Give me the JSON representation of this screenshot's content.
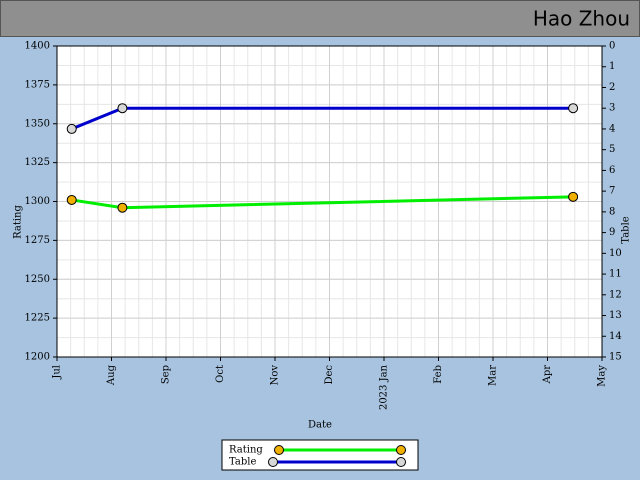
{
  "chart_data": {
    "type": "line",
    "title": "Hao Zhou",
    "xlabel": "Date",
    "ylabel": "Rating",
    "y2label": "Table",
    "x": [
      0.27,
      1.2,
      9.47
    ],
    "xlim": [
      0,
      10
    ],
    "xticks": [
      {
        "value": 0,
        "label": "Jul"
      },
      {
        "value": 1,
        "label": "Aug"
      },
      {
        "value": 2,
        "label": "Sep"
      },
      {
        "value": 3,
        "label": "Oct"
      },
      {
        "value": 4,
        "label": "Nov"
      },
      {
        "value": 5,
        "label": "Dec"
      },
      {
        "value": 6,
        "label": "2023 Jan"
      },
      {
        "value": 7,
        "label": "Feb"
      },
      {
        "value": 8,
        "label": "Mar"
      },
      {
        "value": 9,
        "label": "Apr"
      },
      {
        "value": 10,
        "label": "May"
      }
    ],
    "ylim": [
      1200,
      1400
    ],
    "yticks": [
      1200,
      1225,
      1250,
      1275,
      1300,
      1325,
      1350,
      1375,
      1400
    ],
    "y2lim": [
      0,
      15
    ],
    "y2_reversed": true,
    "y2ticks": [
      0,
      1,
      2,
      3,
      4,
      5,
      6,
      7,
      8,
      9,
      10,
      11,
      12,
      13,
      14,
      15
    ],
    "grid": true,
    "series": [
      {
        "name": "Rating",
        "color": "#00ee00",
        "marker_color": "#f0b000",
        "values": [
          1301,
          1296,
          1303
        ]
      },
      {
        "name": "Table",
        "color": "#0000cc",
        "marker_color": "#d8d8d8",
        "axis": "y2",
        "values": [
          4,
          3,
          3
        ]
      }
    ]
  }
}
